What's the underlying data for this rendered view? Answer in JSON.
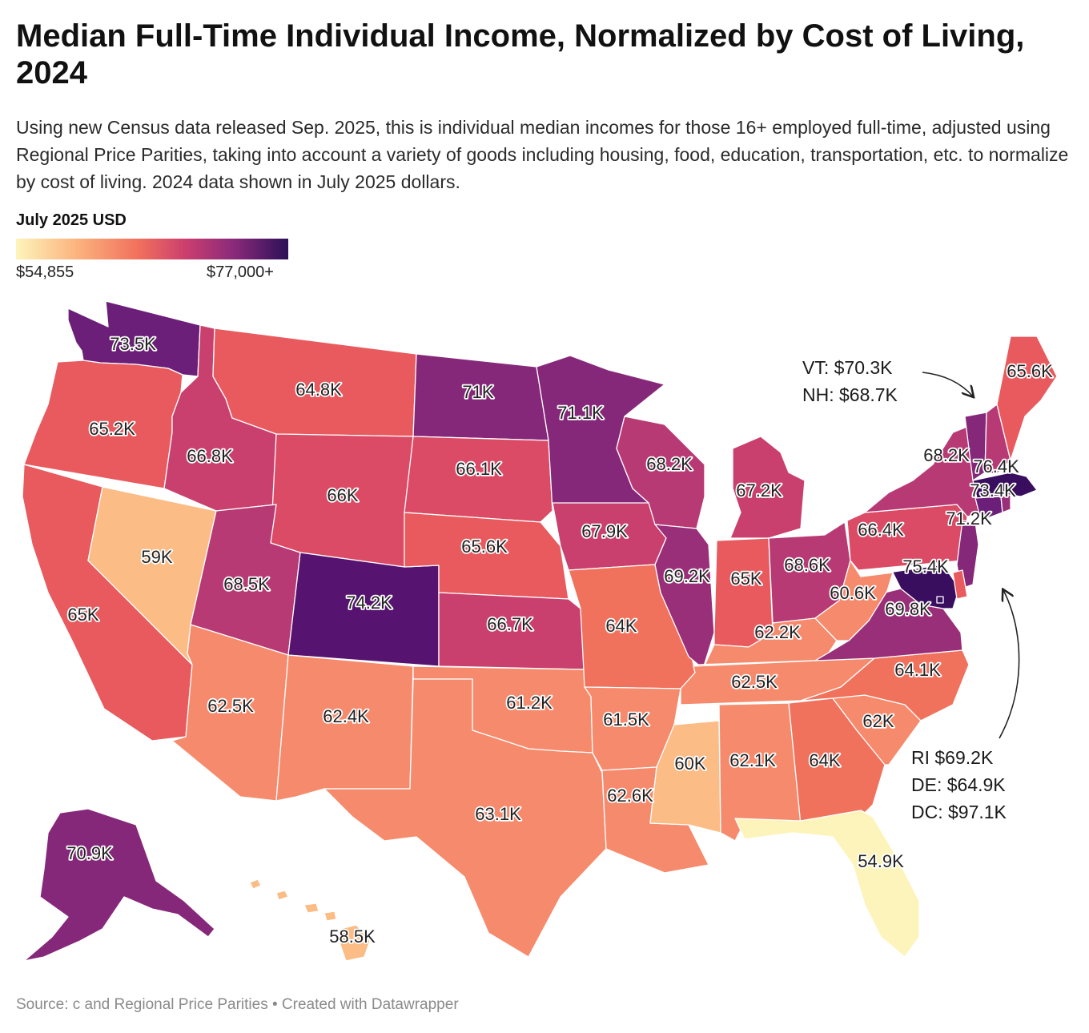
{
  "title": "Median Full-Time Individual Income, Normalized by Cost of Living, 2024",
  "subtitle": "Using new Census data released Sep. 2025, this is individual median incomes for those 16+ employed full-time, adjusted using Regional Price Parities, taking into account a variety of goods including housing, food, education, transportation, etc. to normalize by cost of living. 2024 data shown in July 2025 dollars.",
  "legend": {
    "title": "July 2025 USD",
    "min_label": "$54,855",
    "max_label": "$77,000+"
  },
  "annotations": {
    "vt": "VT: $70.3K",
    "nh": "NH: $68.7K",
    "ri": "RI $69.2K",
    "de": "DE: $64.9K",
    "dc": "DC: $97.1K"
  },
  "source": "Source: c and Regional Price Parities • Created with Datawrapper",
  "colors": {
    "c59": "#fbbc86",
    "c62": "#f68a6c",
    "c64": "#f0725c",
    "c65": "#e85a5e",
    "c66": "#db4b66",
    "c67": "#c9406e",
    "c68": "#b83a75",
    "c69": "#9a2f79",
    "c71": "#86287a",
    "c73": "#6b1f78",
    "c74": "#561470",
    "c76": "#3a0e5f",
    "c55": "#fdf4bb"
  },
  "map_data": {
    "type": "choropleth",
    "unit": "K",
    "states": [
      {
        "state": "WA",
        "label": "73.5K"
      },
      {
        "state": "OR",
        "label": "65.2K"
      },
      {
        "state": "CA",
        "label": "65K"
      },
      {
        "state": "NV",
        "label": "59K"
      },
      {
        "state": "ID",
        "label": "66.8K"
      },
      {
        "state": "MT",
        "label": "64.8K"
      },
      {
        "state": "WY",
        "label": "66K"
      },
      {
        "state": "UT",
        "label": "68.5K"
      },
      {
        "state": "CO",
        "label": "74.2K"
      },
      {
        "state": "AZ",
        "label": "62.5K"
      },
      {
        "state": "NM",
        "label": "62.4K"
      },
      {
        "state": "ND",
        "label": "71K"
      },
      {
        "state": "SD",
        "label": "66.1K"
      },
      {
        "state": "NE",
        "label": "65.6K"
      },
      {
        "state": "KS",
        "label": "66.7K"
      },
      {
        "state": "OK",
        "label": "61.2K"
      },
      {
        "state": "TX",
        "label": "63.1K"
      },
      {
        "state": "MN",
        "label": "71.1K"
      },
      {
        "state": "IA",
        "label": "67.9K"
      },
      {
        "state": "MO",
        "label": "64K"
      },
      {
        "state": "AR",
        "label": "61.5K"
      },
      {
        "state": "LA",
        "label": "62.6K"
      },
      {
        "state": "WI",
        "label": "68.2K"
      },
      {
        "state": "IL",
        "label": "69.2K"
      },
      {
        "state": "MS",
        "label": "60K"
      },
      {
        "state": "MI",
        "label": "67.2K"
      },
      {
        "state": "IN",
        "label": "65K"
      },
      {
        "state": "KY",
        "label": "62.2K"
      },
      {
        "state": "TN",
        "label": "62.5K"
      },
      {
        "state": "AL",
        "label": "62.1K"
      },
      {
        "state": "GA",
        "label": "64K"
      },
      {
        "state": "FL",
        "label": "54.9K"
      },
      {
        "state": "SC",
        "label": "62K"
      },
      {
        "state": "NC",
        "label": "64.1K"
      },
      {
        "state": "VA",
        "label": "69.8K"
      },
      {
        "state": "WV",
        "label": "60.6K"
      },
      {
        "state": "OH",
        "label": "68.6K"
      },
      {
        "state": "PA",
        "label": "66.4K"
      },
      {
        "state": "NY",
        "label": "68.2K"
      },
      {
        "state": "NJ",
        "label": "71.2K"
      },
      {
        "state": "MD",
        "label": "75.4K"
      },
      {
        "state": "CT",
        "label": "73.4K"
      },
      {
        "state": "MA",
        "label": "76.4K"
      },
      {
        "state": "ME",
        "label": "65.6K"
      },
      {
        "state": "AK",
        "label": "70.9K"
      },
      {
        "state": "HI",
        "label": "58.5K"
      }
    ]
  }
}
